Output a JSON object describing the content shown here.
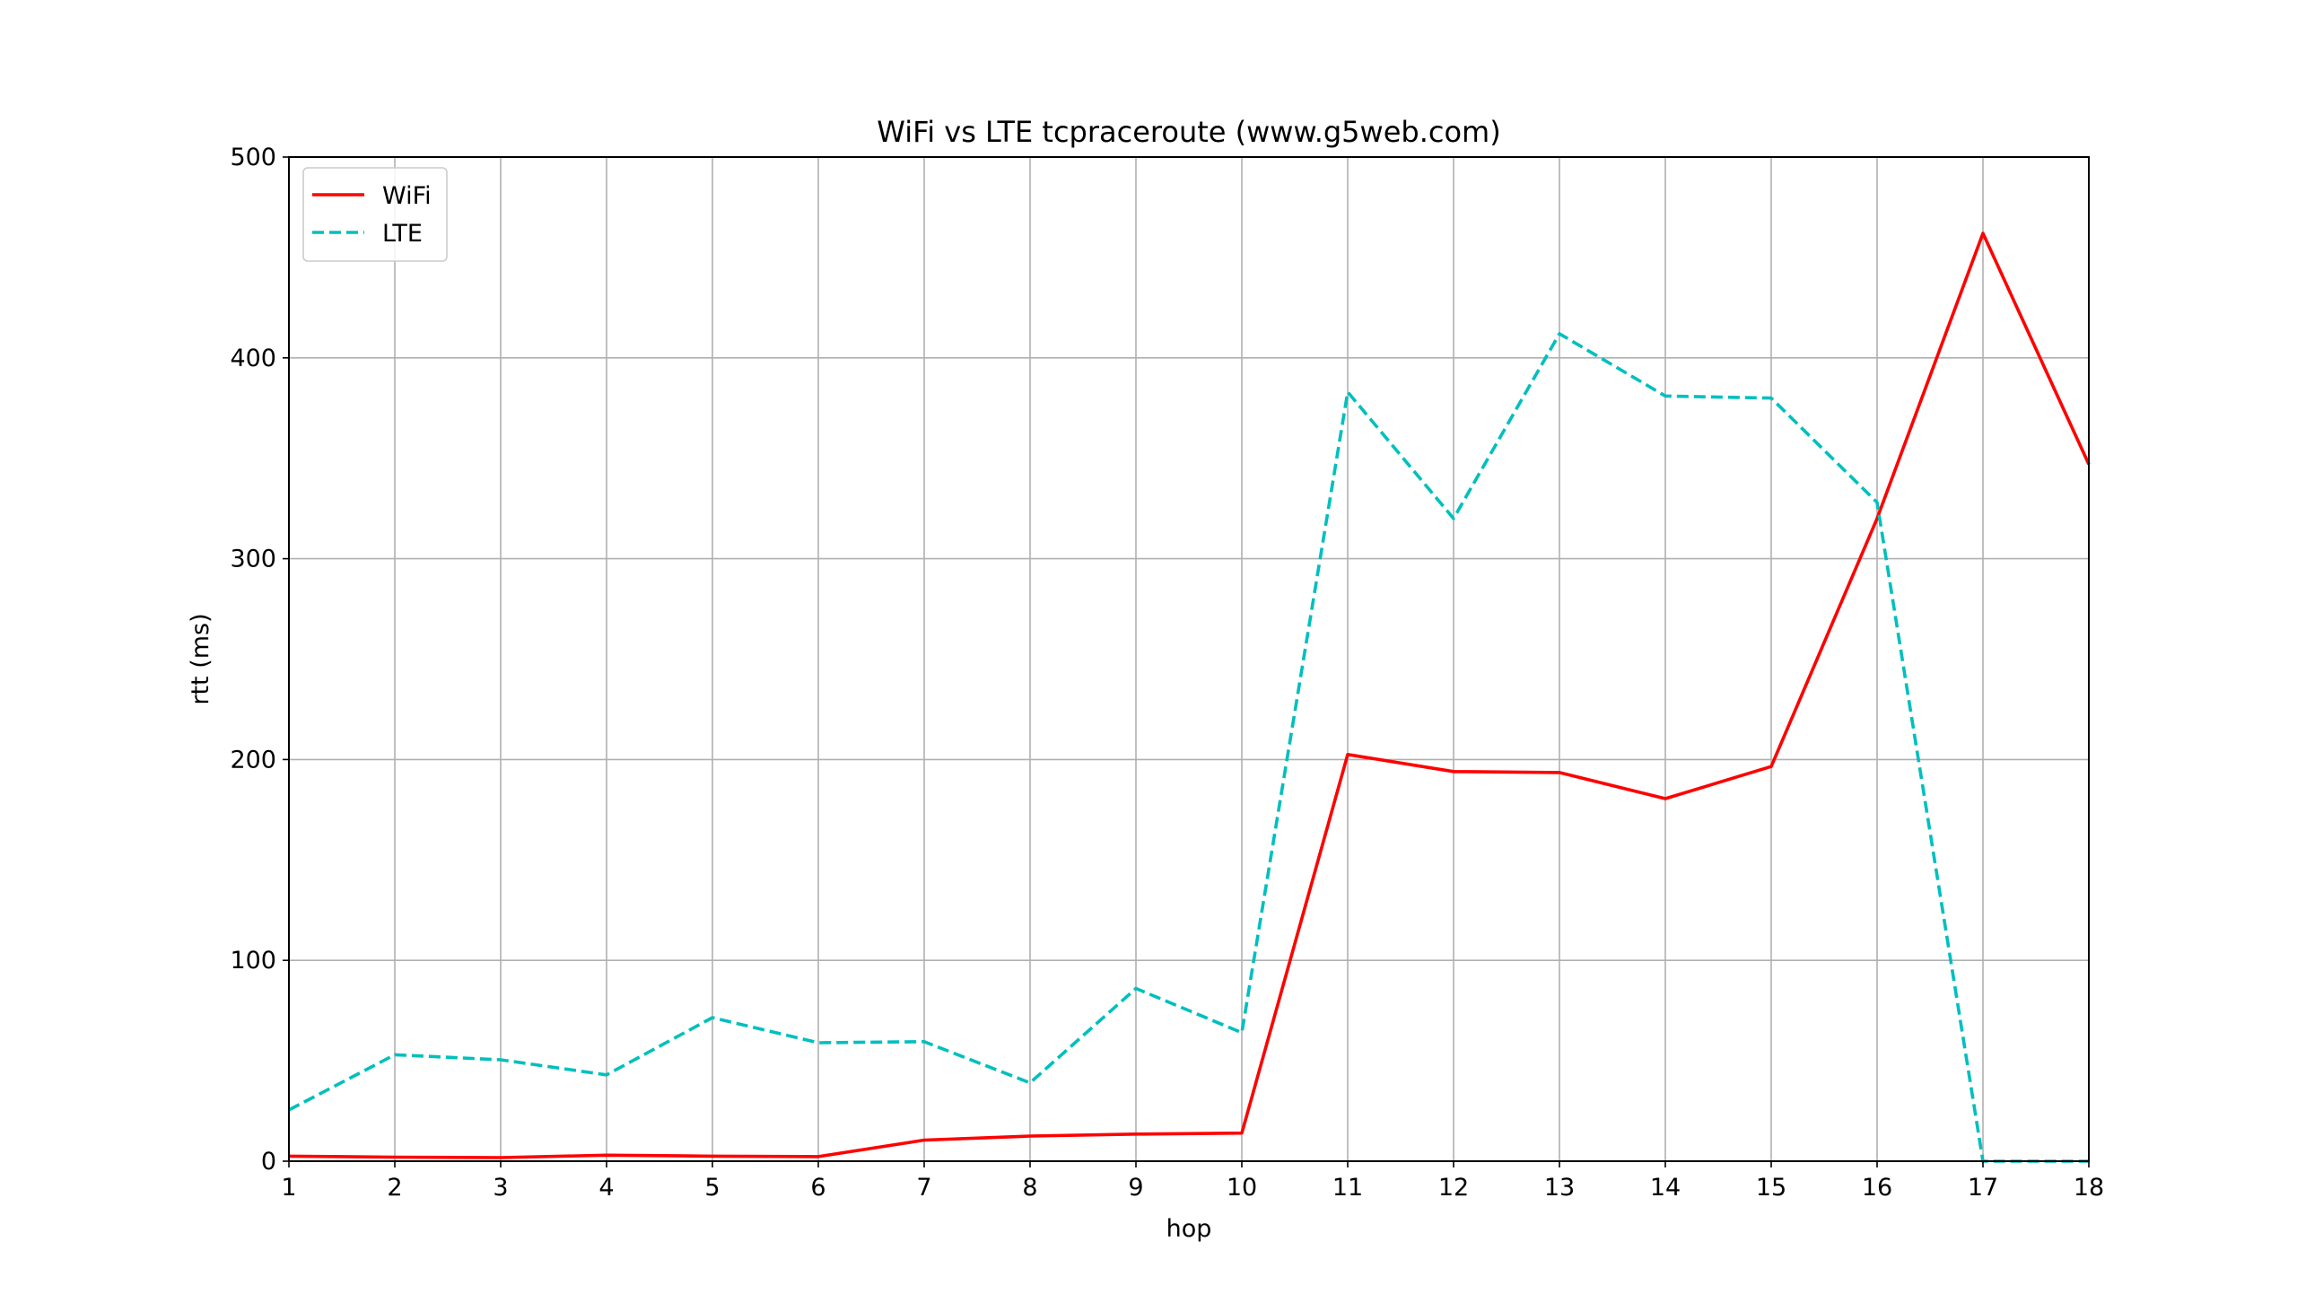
{
  "chart_data": {
    "type": "line",
    "title": "WiFi vs LTE tcpraceroute (www.g5web.com)",
    "xlabel": "hop",
    "ylabel": "rtt (ms)",
    "x": [
      1,
      2,
      3,
      4,
      5,
      6,
      7,
      8,
      9,
      10,
      11,
      12,
      13,
      14,
      15,
      16,
      17,
      18
    ],
    "xlim": [
      1,
      18
    ],
    "ylim": [
      0,
      500
    ],
    "xticks": [
      "1",
      "2",
      "3",
      "4",
      "5",
      "6",
      "7",
      "8",
      "9",
      "10",
      "11",
      "12",
      "13",
      "14",
      "15",
      "16",
      "17",
      "18"
    ],
    "yticks": [
      "0",
      "100",
      "200",
      "300",
      "400",
      "500"
    ],
    "grid": true,
    "legend_position": "top-left",
    "series": [
      {
        "name": "WiFi",
        "color": "#ff0000",
        "style": "solid",
        "values": [
          2.5,
          2.0,
          1.8,
          3.0,
          2.5,
          2.3,
          10.5,
          12.5,
          13.5,
          14.0,
          202.5,
          194.0,
          193.5,
          180.5,
          196.5,
          320.0,
          462.0,
          347.0
        ]
      },
      {
        "name": "LTE",
        "color": "#00bfbf",
        "style": "dashed",
        "values": [
          25.5,
          53.0,
          50.5,
          43.0,
          71.5,
          59.0,
          59.5,
          39.0,
          86.0,
          64.0,
          383.0,
          320.0,
          412.0,
          381.0,
          380.0,
          328.0,
          0.0,
          0.0
        ]
      }
    ]
  }
}
